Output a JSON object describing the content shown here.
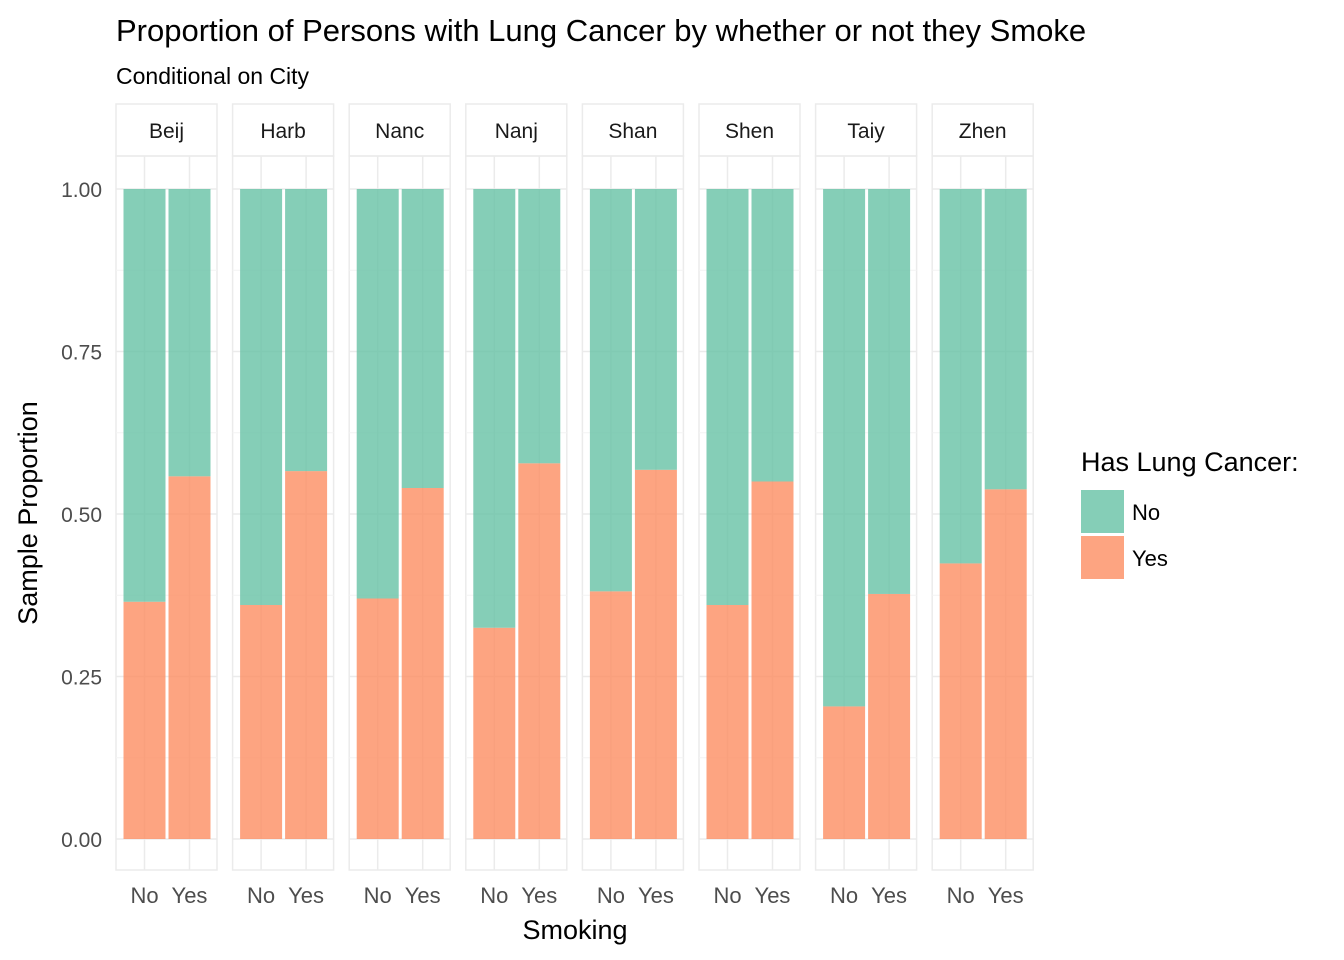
{
  "chart_data": {
    "type": "bar",
    "stacked": true,
    "title": "Proportion of Persons with Lung Cancer by whether or not they Smoke",
    "subtitle": "Conditional on City",
    "xlabel": "Smoking",
    "ylabel": "Sample Proportion",
    "ylim": [
      0,
      1
    ],
    "yticks": [
      "0.00",
      "0.25",
      "0.50",
      "0.75",
      "1.00"
    ],
    "grid": true,
    "categories": [
      "No",
      "Yes"
    ],
    "facets": [
      "Beij",
      "Harb",
      "Nanc",
      "Nanj",
      "Shan",
      "Shen",
      "Taiy",
      "Zhen"
    ],
    "legend": {
      "title": "Has Lung Cancer:",
      "position": "right",
      "entries": [
        {
          "label": "No",
          "color": "#66c2a5"
        },
        {
          "label": "Yes",
          "color": "#fc8d62"
        }
      ]
    },
    "series": [
      {
        "name": "Yes",
        "color": "#fc8d62",
        "values": {
          "Beij": [
            0.365,
            0.558
          ],
          "Harb": [
            0.36,
            0.566
          ],
          "Nanc": [
            0.37,
            0.54
          ],
          "Nanj": [
            0.325,
            0.578
          ],
          "Shan": [
            0.381,
            0.568
          ],
          "Shen": [
            0.36,
            0.55
          ],
          "Taiy": [
            0.204,
            0.377
          ],
          "Zhen": [
            0.424,
            0.538
          ]
        }
      },
      {
        "name": "No",
        "color": "#66c2a5",
        "values": {
          "Beij": [
            0.635,
            0.442
          ],
          "Harb": [
            0.64,
            0.434
          ],
          "Nanc": [
            0.63,
            0.46
          ],
          "Nanj": [
            0.675,
            0.422
          ],
          "Shan": [
            0.619,
            0.432
          ],
          "Shen": [
            0.64,
            0.45
          ],
          "Taiy": [
            0.796,
            0.623
          ],
          "Zhen": [
            0.576,
            0.462
          ]
        }
      }
    ]
  }
}
